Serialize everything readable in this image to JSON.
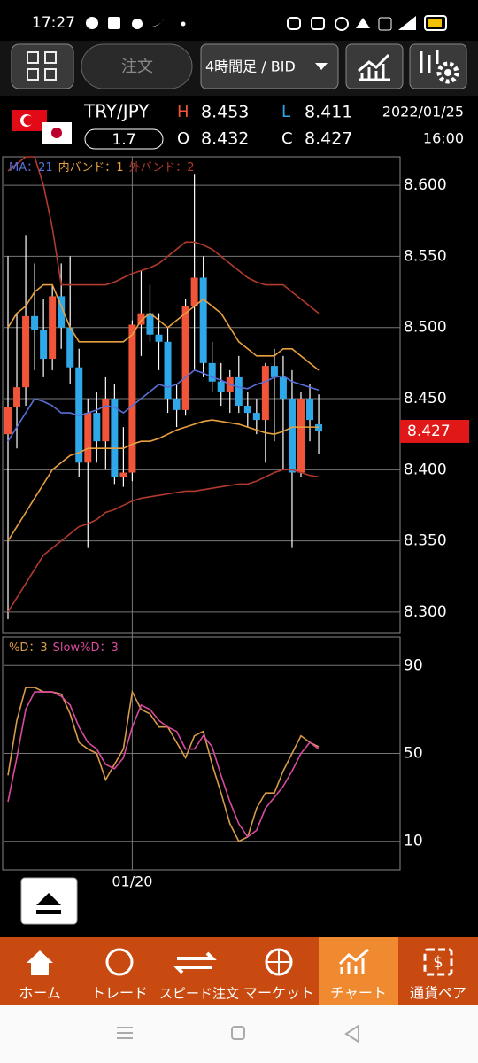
{
  "status_bar": {
    "time": "17:27"
  },
  "toolbar": {
    "order_button": "注文",
    "timeframe": "4時間足 / BID"
  },
  "quote": {
    "symbol": "TRY/JPY",
    "spread": 1.7,
    "high_label": "H",
    "high": 8.453,
    "low_label": "L",
    "low": 8.411,
    "open_label": "O",
    "open": 8.432,
    "close_label": "C",
    "close": 8.427,
    "date": "2022/01/25",
    "time": "16:00"
  },
  "chart_data": [
    {
      "type": "candlestick",
      "up_color": "#f0553a",
      "down_color": "#2ea8e8",
      "categories": [
        null,
        null,
        null,
        null,
        null,
        null,
        null,
        null,
        null,
        null,
        null,
        null,
        null,
        null,
        "01/20",
        null,
        null,
        null,
        null,
        null,
        null,
        null,
        null,
        null,
        null,
        null,
        null,
        null,
        null,
        null,
        null,
        null,
        null,
        null,
        null,
        null
      ],
      "open": [
        8.425,
        8.444,
        8.458,
        8.508,
        8.498,
        8.478,
        8.522,
        8.5,
        8.472,
        8.405,
        8.44,
        8.42,
        8.45,
        8.395,
        8.398,
        8.502,
        8.51,
        8.495,
        8.49,
        8.45,
        8.442,
        8.515,
        8.535,
        8.475,
        8.462,
        8.455,
        8.465,
        8.445,
        8.44,
        8.435,
        8.473,
        8.465,
        8.45,
        8.398,
        8.45,
        8.432
      ],
      "high": [
        8.55,
        8.51,
        8.565,
        8.545,
        8.52,
        8.53,
        8.545,
        8.55,
        8.485,
        8.45,
        8.455,
        8.465,
        8.46,
        8.43,
        8.505,
        8.54,
        8.53,
        8.51,
        8.5,
        8.46,
        8.52,
        8.608,
        8.55,
        8.49,
        8.475,
        8.47,
        8.48,
        8.455,
        8.45,
        8.475,
        8.485,
        8.48,
        8.47,
        8.455,
        8.46,
        8.453
      ],
      "low": [
        8.295,
        8.415,
        8.445,
        8.47,
        8.465,
        8.47,
        8.485,
        8.46,
        8.395,
        8.345,
        8.405,
        8.4,
        8.39,
        8.388,
        8.392,
        8.48,
        8.49,
        8.47,
        8.44,
        8.43,
        8.438,
        8.47,
        8.465,
        8.455,
        8.445,
        8.44,
        8.44,
        8.43,
        8.425,
        8.405,
        8.42,
        8.4,
        8.345,
        8.395,
        8.42,
        8.411
      ],
      "close": [
        8.444,
        8.458,
        8.508,
        8.498,
        8.478,
        8.522,
        8.5,
        8.472,
        8.405,
        8.44,
        8.42,
        8.45,
        8.395,
        8.398,
        8.502,
        8.51,
        8.495,
        8.49,
        8.45,
        8.442,
        8.515,
        8.535,
        8.475,
        8.462,
        8.455,
        8.465,
        8.445,
        8.44,
        8.435,
        8.473,
        8.465,
        8.45,
        8.398,
        8.45,
        8.435,
        8.427
      ],
      "series": [
        {
          "name": "MA：21",
          "color": "#5a6fd6",
          "values": [
            8.42,
            8.43,
            8.44,
            8.45,
            8.448,
            8.445,
            8.44,
            8.44,
            8.438,
            8.44,
            8.442,
            8.445,
            8.444,
            8.44,
            8.445,
            8.45,
            8.455,
            8.46,
            8.458,
            8.46,
            8.465,
            8.47,
            8.468,
            8.465,
            8.463,
            8.46,
            8.458,
            8.457,
            8.46,
            8.462,
            8.465,
            8.466,
            8.462,
            8.46,
            8.458,
            8.456
          ]
        },
        {
          "name": "内バンド：1",
          "color": "#e8a040",
          "upper": [
            8.5,
            8.51,
            8.515,
            8.525,
            8.53,
            8.53,
            8.515,
            8.5,
            8.49,
            8.49,
            8.49,
            8.49,
            8.49,
            8.49,
            8.495,
            8.505,
            8.51,
            8.505,
            8.5,
            8.505,
            8.51,
            8.515,
            8.52,
            8.515,
            8.51,
            8.5,
            8.49,
            8.485,
            8.48,
            8.48,
            8.48,
            8.485,
            8.485,
            8.48,
            8.475,
            8.47
          ],
          "lower": [
            8.35,
            8.36,
            8.37,
            8.38,
            8.39,
            8.4,
            8.405,
            8.41,
            8.412,
            8.415,
            8.415,
            8.415,
            8.415,
            8.415,
            8.418,
            8.42,
            8.42,
            8.422,
            8.425,
            8.428,
            8.43,
            8.432,
            8.434,
            8.435,
            8.434,
            8.433,
            8.432,
            8.43,
            8.428,
            8.426,
            8.425,
            8.427,
            8.43,
            8.43,
            8.43,
            8.43
          ]
        },
        {
          "name": "外バンド：2",
          "color": "#b03a2e",
          "upper": [
            8.61,
            8.615,
            8.62,
            8.62,
            8.6,
            8.57,
            8.53,
            8.53,
            8.53,
            8.53,
            8.53,
            8.53,
            8.532,
            8.535,
            8.538,
            8.54,
            8.542,
            8.545,
            8.55,
            8.555,
            8.56,
            8.56,
            8.558,
            8.555,
            8.55,
            8.545,
            8.54,
            8.535,
            8.532,
            8.53,
            8.53,
            8.53,
            8.525,
            8.52,
            8.515,
            8.51
          ]
        },
        {
          "name": "外バンド：2",
          "color": "#b03a2e",
          "lower": [
            8.3,
            8.31,
            8.32,
            8.33,
            8.34,
            8.345,
            8.35,
            8.355,
            8.36,
            8.362,
            8.365,
            8.37,
            8.372,
            8.375,
            8.378,
            8.38,
            8.381,
            8.382,
            8.383,
            8.384,
            8.385,
            8.385,
            8.386,
            8.387,
            8.388,
            8.389,
            8.39,
            8.39,
            8.392,
            8.395,
            8.398,
            8.4,
            8.4,
            8.398,
            8.396,
            8.395
          ]
        }
      ],
      "last_price": 8.427,
      "ylim": [
        8.285,
        8.62
      ],
      "yticks": [
        {
          "value": 8.6,
          "label": "8.600"
        },
        {
          "value": 8.55,
          "label": "8.550"
        },
        {
          "value": 8.5,
          "label": "8.500"
        },
        {
          "value": 8.45,
          "label": "8.450"
        },
        {
          "value": 8.4,
          "label": "8.400"
        },
        {
          "value": 8.35,
          "label": "8.350"
        },
        {
          "value": 8.3,
          "label": "8.300"
        }
      ],
      "grid": true
    },
    {
      "type": "line",
      "series": [
        {
          "name": "%D：3",
          "color": "#d79a4a",
          "values": [
            40,
            65,
            80,
            80,
            78,
            78,
            77,
            68,
            55,
            52,
            50,
            38,
            45,
            52,
            78,
            70,
            68,
            62,
            62,
            55,
            48,
            58,
            60,
            45,
            32,
            18,
            10,
            12,
            25,
            32,
            32,
            42,
            50,
            58,
            55,
            53
          ]
        },
        {
          "name": "Slow%D：3",
          "color": "#d94a9e",
          "values": [
            28,
            48,
            70,
            78,
            78,
            78,
            76,
            72,
            62,
            55,
            52,
            45,
            43,
            48,
            62,
            72,
            70,
            65,
            62,
            60,
            52,
            52,
            58,
            53,
            40,
            28,
            18,
            12,
            15,
            25,
            30,
            35,
            42,
            50,
            55,
            52
          ]
        }
      ],
      "ylim": [
        -3,
        103
      ],
      "yticks": [
        90,
        50,
        10
      ],
      "grid": true
    }
  ],
  "nav": {
    "items": [
      "ホーム",
      "トレード",
      "スピード注文",
      "マーケット",
      "チャート",
      "通貨ペア"
    ]
  }
}
